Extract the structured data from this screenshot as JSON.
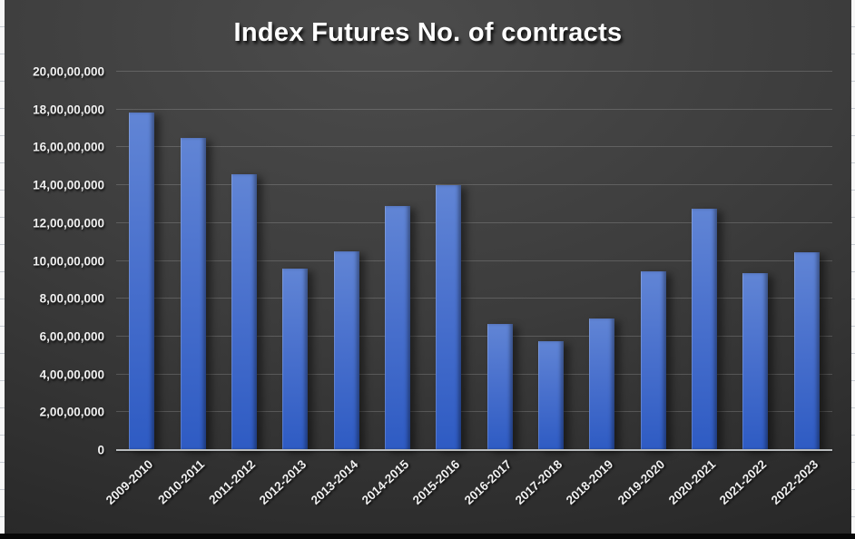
{
  "chart_data": {
    "type": "bar",
    "title": "Index Futures No. of contracts",
    "categories": [
      "2009-2010",
      "2010-2011",
      "2011-2012",
      "2012-2013",
      "2013-2014",
      "2014-2015",
      "2015-2016",
      "2016-2017",
      "2017-2018",
      "2018-2019",
      "2019-2020",
      "2020-2021",
      "2021-2022",
      "2022-2023"
    ],
    "values": [
      178500000,
      165000000,
      146000000,
      96000000,
      105000000,
      129000000,
      140000000,
      66500000,
      57500000,
      69500000,
      94500000,
      127500000,
      93500000,
      104500000
    ],
    "xlabel": "",
    "ylabel": "",
    "ylim": [
      0,
      200000000
    ],
    "ytick_interval": 20000000,
    "ytick_labels": [
      "0",
      "2,00,00,000",
      "4,00,00,000",
      "6,00,00,000",
      "8,00,00,000",
      "10,00,00,000",
      "12,00,00,000",
      "14,00,00,000",
      "16,00,00,000",
      "18,00,00,000",
      "20,00,00,000"
    ],
    "grid": "horizontal",
    "legend": "none"
  },
  "colors": {
    "bar_gradient_top": "#6185d5",
    "bar_gradient_mid": "#4a71cd",
    "bar_gradient_bottom": "#2e5bc3",
    "axis_line": "#b9bcbe",
    "gridline": "rgba(255,255,255,0.17)",
    "label_text": "#f0f0f0",
    "title_text": "#ffffff",
    "chart_bg_light": "#4c4c4c",
    "chart_bg_dark": "#1f1f1f",
    "sheet_edge": "#f7f7f7"
  }
}
